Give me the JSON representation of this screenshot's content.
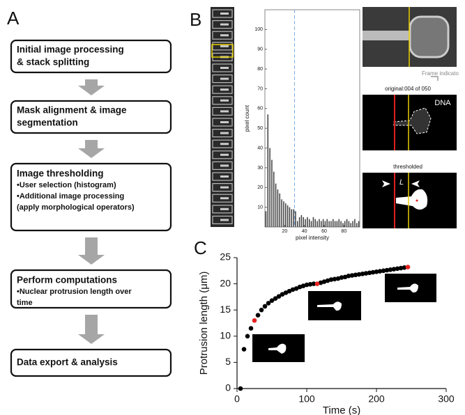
{
  "panel_labels": [
    "A",
    "B",
    "C"
  ],
  "workflow": {
    "steps": [
      {
        "title": [
          "Initial image processing",
          "& stack splitting"
        ],
        "bullets": []
      },
      {
        "title": [
          "Mask alignment & image",
          "segmentation"
        ],
        "bullets": []
      },
      {
        "title": [
          "Image  thresholding"
        ],
        "bullets": [
          [
            "•User selection (histogram)"
          ],
          [
            "•Additional image processing",
            " (apply morphological operators)"
          ]
        ]
      },
      {
        "title": [
          "Perform computations"
        ],
        "bullets": [
          [
            "•Nuclear protrusion length over",
            " time"
          ]
        ]
      },
      {
        "title": [
          "Data export & analysis"
        ],
        "bullets": []
      }
    ]
  },
  "images": {
    "frame_indicator": "Frame indicato",
    "original_label": "original:004 of 050",
    "dna_label": "DNA",
    "thresholded_label": "thresholded",
    "length_label": "L"
  },
  "chart_data": [
    {
      "type": "bar",
      "xlabel": "pixel intensity",
      "ylabel": "pixel count",
      "color": "#444",
      "x": [
        1,
        3,
        5,
        7,
        9,
        11,
        13,
        15,
        17,
        19,
        21,
        23,
        25,
        27,
        29,
        31,
        33,
        35,
        37,
        39,
        41,
        43,
        45,
        47,
        49,
        51,
        53,
        55,
        57,
        59,
        61,
        63,
        65,
        67,
        69,
        71,
        73,
        75,
        77,
        79,
        81,
        83,
        85,
        87,
        89,
        91,
        93,
        95
      ],
      "values": [
        8,
        57,
        40,
        34,
        28,
        22,
        19,
        17,
        14,
        13,
        12,
        11,
        10,
        9,
        9,
        8,
        3,
        5,
        6,
        5,
        4,
        5,
        4,
        3,
        5,
        4,
        3,
        4,
        3,
        4,
        3,
        4,
        3,
        3,
        4,
        3,
        3,
        4,
        3,
        2,
        3,
        4,
        3,
        2,
        3,
        4,
        2,
        3
      ],
      "xlim": [
        0,
        96
      ],
      "ylim": [
        0,
        110
      ],
      "xticks": [
        20,
        40,
        60,
        80
      ],
      "yticks": [
        10,
        20,
        30,
        40,
        50,
        60,
        70,
        80,
        90,
        100
      ],
      "threshold": 30
    },
    {
      "type": "scatter",
      "xlabel": "Time (s)",
      "ylabel": "Protrusion length (μm)",
      "series": [
        {
          "color": "#000000",
          "x": [
            5,
            10,
            15,
            20,
            30,
            35,
            40,
            45,
            50,
            55,
            60,
            65,
            70,
            75,
            80,
            85,
            90,
            95,
            100,
            105,
            110,
            120,
            125,
            130,
            135,
            140,
            145,
            150,
            155,
            160,
            165,
            170,
            175,
            180,
            185,
            190,
            195,
            200,
            205,
            210,
            215,
            220,
            225,
            230,
            235,
            240
          ],
          "values": [
            0,
            7.5,
            10,
            11.5,
            14,
            15,
            15.7,
            16.3,
            16.8,
            17.2,
            17.6,
            18,
            18.3,
            18.6,
            18.9,
            19.1,
            19.4,
            19.6,
            19.8,
            19.9,
            20,
            20.2,
            20.4,
            20.6,
            20.8,
            20.9,
            21,
            21.2,
            21.3,
            21.5,
            21.6,
            21.7,
            21.8,
            21.9,
            22,
            22.1,
            22.2,
            22.3,
            22.4,
            22.5,
            22.6,
            22.7,
            22.8,
            22.9,
            23,
            23.1
          ]
        },
        {
          "color": "#e52222",
          "x": [
            25,
            115,
            245
          ],
          "values": [
            13,
            20,
            23.2
          ]
        }
      ],
      "xlim": [
        0,
        300
      ],
      "ylim": [
        0,
        25
      ],
      "xticks": [
        0,
        100,
        200,
        300
      ],
      "yticks": [
        0,
        5,
        10,
        15,
        20,
        25
      ]
    }
  ]
}
